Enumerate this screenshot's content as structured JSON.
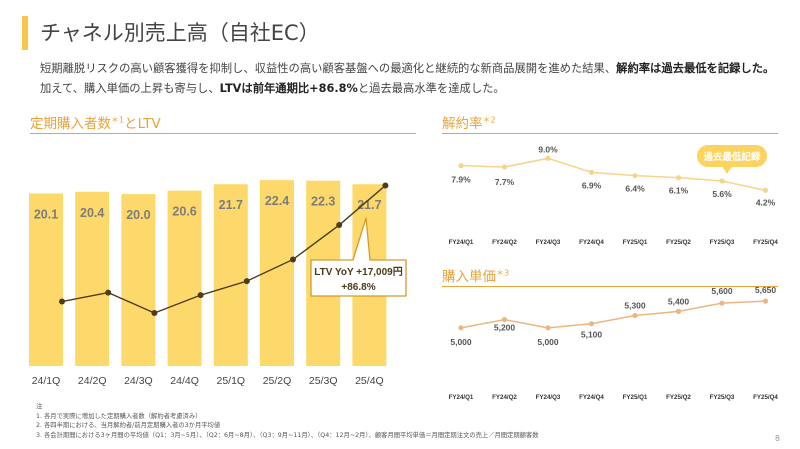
{
  "header": {
    "title": "チャネル別売上高（自社EC）"
  },
  "lead": {
    "line1a": "短期離脱リスクの高い顧客獲得を抑制し、収益性の高い顧客基盤への最適化と継続的な新商品展開を進めた結果、",
    "line1b": "解約率は過去最低を記録した。",
    "line2a": "加えて、購入単価の上昇も寄与し、",
    "line2b": "LTVは前年通期比+86.8%",
    "line2c": "と過去最高水準を達成した。"
  },
  "sections": {
    "left": {
      "title": "定期購入者数",
      "sup": "＊1",
      "suffix": "とLTV"
    },
    "churn": {
      "title": "解約率",
      "sup": "＊2"
    },
    "price": {
      "title": "購入単価",
      "sup": "＊3"
    }
  },
  "callouts": {
    "ltv_line1": "LTV YoY +17,009円",
    "ltv_line2": "+86.8%",
    "record_low": "過去最低記録"
  },
  "colors": {
    "bar": "#fcd96a",
    "bar_label": "#7c7c7c",
    "ltv_line": "#4d3c18",
    "churn_line": "#f6d48d",
    "price_line": "#ecb683",
    "accent": "#e8a33b",
    "callout_border": "#d59a2a",
    "callout_fill": "#fcd35e"
  },
  "chart_data": [
    {
      "type": "bar",
      "categories": [
        "24/1Q",
        "24/2Q",
        "24/3Q",
        "24/4Q",
        "25/1Q",
        "25/2Q",
        "25/3Q",
        "25/4Q"
      ],
      "series": [
        {
          "name": "",
          "values": [
            20.1,
            20.4,
            20.0,
            20.6,
            21.7,
            22.4,
            22.3,
            21.7
          ]
        }
      ],
      "ltv_index": [
        1.0,
        1.35,
        0.55,
        1.25,
        1.8,
        2.65,
        4.0,
        5.55
      ],
      "title": "定期購入者数＊1とLTV"
    },
    {
      "type": "line",
      "categories": [
        "FY24/Q1",
        "FY24/Q2",
        "FY24/Q3",
        "FY24/Q4",
        "FY25/Q1",
        "FY25/Q2",
        "FY25/Q3",
        "FY25/Q4"
      ],
      "series": [
        {
          "name": "",
          "values": [
            7.9,
            7.7,
            9.0,
            6.9,
            6.4,
            6.1,
            5.6,
            4.2
          ],
          "labels": [
            "7.9%",
            "7.7%",
            "9.0%",
            "6.9%",
            "6.4%",
            "6.1%",
            "5.6%",
            "4.2%"
          ]
        }
      ],
      "ylim": [
        3.5,
        9.5
      ],
      "title": "解約率＊2"
    },
    {
      "type": "line",
      "categories": [
        "FY24/Q1",
        "FY24/Q2",
        "FY24/Q3",
        "FY24/Q4",
        "FY25/Q1",
        "FY25/Q2",
        "FY25/Q3",
        "FY25/Q4"
      ],
      "series": [
        {
          "name": "",
          "values": [
            5000,
            5200,
            5000,
            5100,
            5300,
            5400,
            5600,
            5650
          ],
          "labels": [
            "5,000",
            "5,200",
            "5,000",
            "5,100",
            "5,300",
            "5,400",
            "5,600",
            "5,650"
          ]
        }
      ],
      "ylim": [
        4850,
        5750
      ],
      "title": "購入単価＊3"
    }
  ],
  "notes": {
    "heading": "注",
    "n1": "1. 各月で実際に増加した定期購入者数（解約者考慮済み）",
    "n2": "2. 各四半期における、当月解約者/前月定期購入者の3か月平均値",
    "n3": "3. 各会計期間における3ヶ月間の平均値（Q1：3月~5月）、（Q2：6月~8月）、（Q3：9月~11月）、（Q4：12月~2月）、顧客月間平均単価＝月間定期注文の売上／月間定期顧客数"
  },
  "page_number": "8"
}
